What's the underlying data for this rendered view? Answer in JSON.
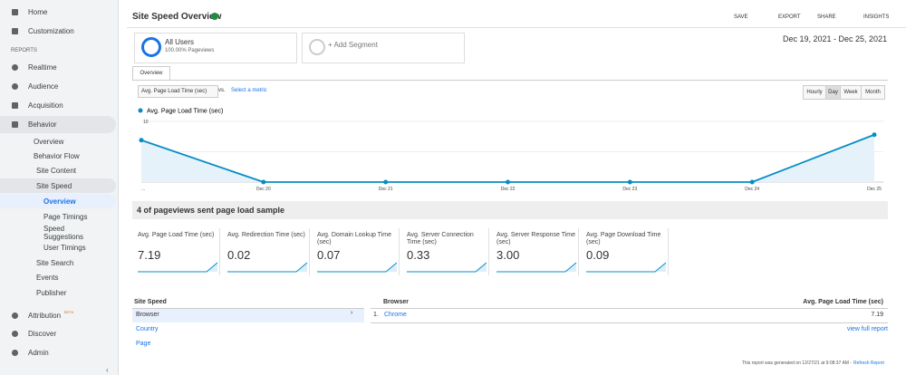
{
  "sidebar": {
    "home": "Home",
    "customization": "Customization",
    "reports": "REPORTS",
    "realtime": "Realtime",
    "audience": "Audience",
    "acquisition": "Acquisition",
    "behavior": "Behavior",
    "behavior_items": [
      "Overview",
      "Behavior Flow",
      "Site Content",
      "Site Speed"
    ],
    "site_speed_items": [
      "Overview",
      "Page Timings",
      "Speed Suggestions",
      "User Timings"
    ],
    "more_behavior": [
      "Site Search",
      "Events",
      "Publisher"
    ],
    "attribution": "Attribution",
    "beta": "BETA",
    "discover": "Discover",
    "admin": "Admin"
  },
  "header": {
    "title": "Site Speed Overview",
    "actions": [
      "SAVE",
      "EXPORT",
      "SHARE",
      "INSIGHTS"
    ]
  },
  "segments": {
    "all_users": "All Users",
    "all_users_sub": "100.00% Pageviews",
    "add": "+ Add Segment"
  },
  "date_range": "Dec 19, 2021 - Dec 25, 2021",
  "tab": "Overview",
  "metric_select": "Avg. Page Load Time (sec)",
  "vs": "vs.",
  "select_metric": "Select a metric",
  "granularity": [
    "Hourly",
    "Day",
    "Week",
    "Month"
  ],
  "chart_data": {
    "type": "line",
    "categories": [
      "...",
      "Dec 20",
      "Dec 21",
      "Dec 22",
      "Dec 23",
      "Dec 24",
      "Dec 25"
    ],
    "series": [
      {
        "name": "Avg. Page Load Time (sec)",
        "color": "#058dc7",
        "values": [
          6.9,
          0,
          0,
          0,
          0,
          0,
          7.8
        ]
      }
    ],
    "ylim": [
      0,
      10
    ],
    "yticks": [
      5,
      10
    ],
    "grid": true
  },
  "sample_heading": "4 of pageviews sent page load sample",
  "metrics": [
    {
      "label": "Avg. Page Load Time (sec)",
      "value": "7.19"
    },
    {
      "label": "Avg. Redirection Time (sec)",
      "value": "0.02"
    },
    {
      "label": "Avg. Domain Lookup Time (sec)",
      "value": "0.07"
    },
    {
      "label": "Avg. Server Connection Time (sec)",
      "value": "0.33"
    },
    {
      "label": "Avg. Server Response Time (sec)",
      "value": "3.00"
    },
    {
      "label": "Avg. Page Download Time (sec)",
      "value": "0.09"
    }
  ],
  "table": {
    "left_header": "Site Speed",
    "left_rows": [
      "Browser",
      "Country",
      "Page"
    ],
    "right_header": "Browser",
    "metric_header": "Avg. Page Load Time (sec)",
    "rows": [
      {
        "rank": "1.",
        "name": "Chrome",
        "value": "7.19"
      }
    ],
    "full_report": "view full report"
  },
  "footer": {
    "generated": "This report was generated on 12/27/21 at 9:08:37 AM -",
    "refresh": "Refresh Report"
  }
}
